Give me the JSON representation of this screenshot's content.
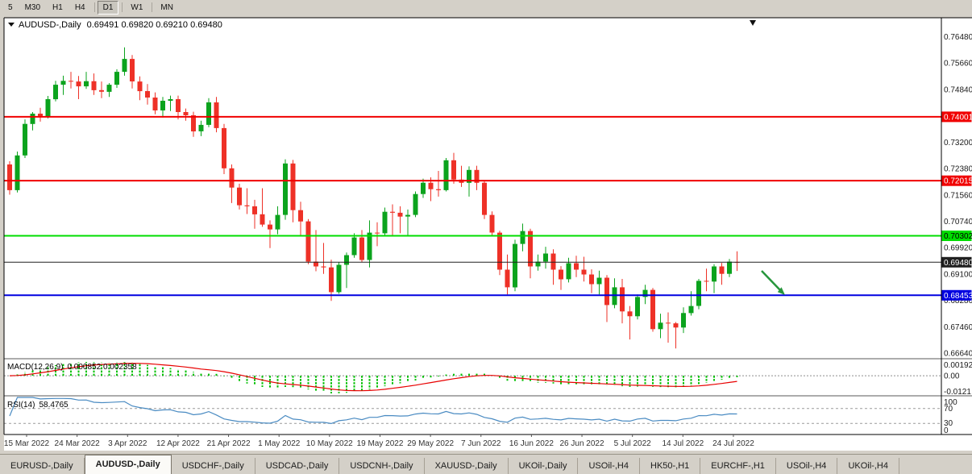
{
  "toolbar": {
    "buttons": [
      "5",
      "M30",
      "H1",
      "H4",
      "D1",
      "W1",
      "MN"
    ],
    "active": "D1"
  },
  "chart": {
    "title": "AUDUSD-,Daily",
    "ohlc_display": "0.69491 0.69820 0.69210 0.69480",
    "colors": {
      "up": "#0ba31d",
      "down": "#ee3127",
      "background": "#ffffff"
    },
    "y_ticks": [
      "0.76480",
      "0.75660",
      "0.74840",
      "0.73200",
      "0.72380",
      "0.71560",
      "0.70740",
      "0.69920",
      "0.69100",
      "0.68280",
      "0.67460",
      "0.66640"
    ],
    "hlines": [
      {
        "label": "0.74001",
        "price": 0.74001,
        "color": "#f00000",
        "text_color": "#ffffff",
        "width": 2
      },
      {
        "label": "0.72015",
        "price": 0.72015,
        "color": "#f00000",
        "text_color": "#ffffff",
        "width": 2
      },
      {
        "label": "0.70302",
        "price": 0.70302,
        "color": "#00dd00",
        "text_color": "#000000",
        "width": 2
      },
      {
        "label": "0.69480",
        "price": 0.6948,
        "color": "#202020",
        "text_color": "#ffffff",
        "width": 1
      },
      {
        "label": "0.68453",
        "price": 0.68453,
        "color": "#0000e0",
        "text_color": "#ffffff",
        "width": 2
      }
    ],
    "x_labels": [
      "15 Mar 2022",
      "24 Mar 2022",
      "3 Apr 2022",
      "12 Apr 2022",
      "21 Apr 2022",
      "1 May 2022",
      "10 May 2022",
      "19 May 2022",
      "29 May 2022",
      "7 Jun 2022",
      "16 Jun 2022",
      "26 Jun 2022",
      "5 Jul 2022",
      "14 Jul 2022",
      "24 Jul 2022"
    ],
    "arrow": {
      "color": "#27963c"
    }
  },
  "macd": {
    "name": "MACD(12,26,9)",
    "values": "0.000852 0.002358",
    "axis": [
      "0.00192",
      "0.00",
      "-0.0121"
    ],
    "colors": {
      "histogram": "#00c000",
      "signal": "#e80000"
    }
  },
  "rsi": {
    "name": "RSI(14)",
    "value": "58.4765",
    "axis": [
      "100",
      "70",
      "30",
      "0"
    ],
    "levels": [
      70,
      30
    ],
    "color": "#4a8bc2"
  },
  "tabs": [
    {
      "label": "EURUSD-,Daily"
    },
    {
      "label": "AUDUSD-,Daily",
      "active": true
    },
    {
      "label": "USDCHF-,Daily"
    },
    {
      "label": "USDCAD-,Daily"
    },
    {
      "label": "USDCNH-,Daily"
    },
    {
      "label": "XAUUSD-,Daily"
    },
    {
      "label": "UKOil-,Daily"
    },
    {
      "label": "USOil-,H4"
    },
    {
      "label": "HK50-,H1"
    },
    {
      "label": "EURCHF-,H1"
    },
    {
      "label": "USOil-,H4"
    },
    {
      "label": "UKOil-,H4"
    }
  ],
  "chart_data": {
    "type": "candlestick",
    "symbol": "AUDUSD",
    "timeframe": "Daily",
    "x_range": [
      "15 Mar 2022",
      "26 Jul 2022"
    ],
    "ylim": [
      0.6664,
      0.7648
    ],
    "indicators": [
      {
        "type": "MACD",
        "params": [
          12,
          26,
          9
        ]
      },
      {
        "type": "RSI",
        "params": [
          14
        ]
      }
    ],
    "ohlc": [
      [
        0.7252,
        0.7262,
        0.7158,
        0.7172
      ],
      [
        0.7172,
        0.7292,
        0.7165,
        0.728
      ],
      [
        0.728,
        0.7392,
        0.7272,
        0.7378
      ],
      [
        0.7378,
        0.7415,
        0.7358,
        0.741
      ],
      [
        0.741,
        0.7428,
        0.7385,
        0.74
      ],
      [
        0.74,
        0.7465,
        0.7395,
        0.7455
      ],
      [
        0.7455,
        0.7512,
        0.7448,
        0.75
      ],
      [
        0.75,
        0.7528,
        0.7468,
        0.7512
      ],
      [
        0.7512,
        0.754,
        0.7488,
        0.751
      ],
      [
        0.751,
        0.7527,
        0.7455,
        0.7495
      ],
      [
        0.7495,
        0.754,
        0.7487,
        0.7511
      ],
      [
        0.7511,
        0.7535,
        0.7468,
        0.7483
      ],
      [
        0.7483,
        0.751,
        0.7458,
        0.7478
      ],
      [
        0.7478,
        0.7505,
        0.7462,
        0.75
      ],
      [
        0.75,
        0.7548,
        0.749,
        0.754
      ],
      [
        0.754,
        0.7616,
        0.7528,
        0.758
      ],
      [
        0.758,
        0.7592,
        0.7488,
        0.751
      ],
      [
        0.751,
        0.7526,
        0.7452,
        0.748
      ],
      [
        0.748,
        0.7502,
        0.7438,
        0.746
      ],
      [
        0.746,
        0.7476,
        0.7408,
        0.742
      ],
      [
        0.742,
        0.7462,
        0.7398,
        0.745
      ],
      [
        0.745,
        0.7466,
        0.7418,
        0.7455
      ],
      [
        0.7455,
        0.7466,
        0.7392,
        0.7415
      ],
      [
        0.7415,
        0.7426,
        0.7388,
        0.7405
      ],
      [
        0.7405,
        0.7416,
        0.7338,
        0.7355
      ],
      [
        0.7355,
        0.7388,
        0.734,
        0.7375
      ],
      [
        0.7375,
        0.7458,
        0.7368,
        0.7445
      ],
      [
        0.7445,
        0.7462,
        0.7352,
        0.7365
      ],
      [
        0.7365,
        0.7378,
        0.7222,
        0.724
      ],
      [
        0.724,
        0.7252,
        0.7132,
        0.718
      ],
      [
        0.718,
        0.7192,
        0.7112,
        0.7125
      ],
      [
        0.7125,
        0.7178,
        0.7098,
        0.7122
      ],
      [
        0.7122,
        0.7142,
        0.7052,
        0.7097
      ],
      [
        0.7097,
        0.7178,
        0.7058,
        0.7065
      ],
      [
        0.7065,
        0.7078,
        0.6992,
        0.705
      ],
      [
        0.705,
        0.7122,
        0.7035,
        0.7095
      ],
      [
        0.7095,
        0.7268,
        0.708,
        0.7255
      ],
      [
        0.7255,
        0.7266,
        0.7072,
        0.711
      ],
      [
        0.711,
        0.7136,
        0.7028,
        0.7075
      ],
      [
        0.7075,
        0.7082,
        0.6942,
        0.695
      ],
      [
        0.695,
        0.7048,
        0.692,
        0.6935
      ],
      [
        0.6935,
        0.7008,
        0.6912,
        0.6932
      ],
      [
        0.6932,
        0.6956,
        0.6828,
        0.6855
      ],
      [
        0.6855,
        0.6948,
        0.685,
        0.694
      ],
      [
        0.694,
        0.6978,
        0.6868,
        0.697
      ],
      [
        0.697,
        0.7038,
        0.6962,
        0.7025
      ],
      [
        0.7025,
        0.7048,
        0.6948,
        0.6955
      ],
      [
        0.6955,
        0.7078,
        0.6932,
        0.704
      ],
      [
        0.704,
        0.7072,
        0.6998,
        0.7038
      ],
      [
        0.7038,
        0.7118,
        0.7032,
        0.7105
      ],
      [
        0.7105,
        0.7128,
        0.7032,
        0.7102
      ],
      [
        0.7102,
        0.7122,
        0.7038,
        0.709
      ],
      [
        0.709,
        0.7112,
        0.7032,
        0.7095
      ],
      [
        0.7095,
        0.7168,
        0.7088,
        0.716
      ],
      [
        0.716,
        0.7208,
        0.7148,
        0.7195
      ],
      [
        0.7195,
        0.7212,
        0.7138,
        0.7175
      ],
      [
        0.7175,
        0.7232,
        0.7152,
        0.7172
      ],
      [
        0.7172,
        0.7272,
        0.7168,
        0.7265
      ],
      [
        0.7265,
        0.7288,
        0.7192,
        0.7205
      ],
      [
        0.7205,
        0.7248,
        0.7182,
        0.7195
      ],
      [
        0.7195,
        0.7246,
        0.7152,
        0.7235
      ],
      [
        0.7235,
        0.7248,
        0.7172,
        0.7195
      ],
      [
        0.7195,
        0.7202,
        0.7082,
        0.7095
      ],
      [
        0.7095,
        0.7106,
        0.7028,
        0.704
      ],
      [
        0.704,
        0.7046,
        0.6908,
        0.6925
      ],
      [
        0.6925,
        0.6972,
        0.6848,
        0.687
      ],
      [
        0.687,
        0.7018,
        0.6858,
        0.7005
      ],
      [
        0.7005,
        0.7068,
        0.6982,
        0.7045
      ],
      [
        0.7045,
        0.7052,
        0.6898,
        0.6935
      ],
      [
        0.6935,
        0.6972,
        0.6922,
        0.695
      ],
      [
        0.695,
        0.6996,
        0.6928,
        0.6975
      ],
      [
        0.6975,
        0.6988,
        0.6878,
        0.6925
      ],
      [
        0.6925,
        0.6936,
        0.6862,
        0.6895
      ],
      [
        0.6895,
        0.6962,
        0.6885,
        0.6945
      ],
      [
        0.6945,
        0.6968,
        0.6902,
        0.6925
      ],
      [
        0.6925,
        0.6965,
        0.6888,
        0.691
      ],
      [
        0.691,
        0.6926,
        0.6852,
        0.688
      ],
      [
        0.688,
        0.6922,
        0.6848,
        0.69
      ],
      [
        0.69,
        0.6908,
        0.6762,
        0.6815
      ],
      [
        0.6815,
        0.6898,
        0.6805,
        0.687
      ],
      [
        0.687,
        0.6896,
        0.6758,
        0.6795
      ],
      [
        0.6795,
        0.6812,
        0.6708,
        0.678
      ],
      [
        0.678,
        0.6848,
        0.677,
        0.684
      ],
      [
        0.684,
        0.6878,
        0.6818,
        0.6862
      ],
      [
        0.6862,
        0.6868,
        0.6732,
        0.674
      ],
      [
        0.674,
        0.6788,
        0.6712,
        0.676
      ],
      [
        0.676,
        0.6792,
        0.6698,
        0.6758
      ],
      [
        0.6758,
        0.6762,
        0.668,
        0.6745
      ],
      [
        0.6745,
        0.6808,
        0.6728,
        0.679
      ],
      [
        0.679,
        0.6858,
        0.6782,
        0.6812
      ],
      [
        0.6812,
        0.6896,
        0.6802,
        0.689
      ],
      [
        0.689,
        0.6928,
        0.6858,
        0.6888
      ],
      [
        0.6888,
        0.6942,
        0.6852,
        0.6935
      ],
      [
        0.6935,
        0.6946,
        0.6878,
        0.6912
      ],
      [
        0.6912,
        0.6958,
        0.6902,
        0.695
      ],
      [
        0.69491,
        0.6982,
        0.6921,
        0.6948
      ]
    ]
  }
}
